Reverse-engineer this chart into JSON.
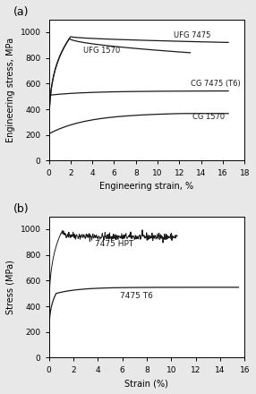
{
  "fig_width": 2.86,
  "fig_height": 4.4,
  "dpi": 100,
  "background_color": "#e8e8e8",
  "subplot_a": {
    "label": "(a)",
    "xlabel": "Engineering strain, %",
    "ylabel": "Engineering stress, MPa",
    "xlim": [
      0,
      18
    ],
    "ylim": [
      0,
      1100
    ],
    "xticks": [
      0,
      2,
      4,
      6,
      8,
      10,
      12,
      14,
      16,
      18
    ],
    "yticks": [
      0,
      200,
      400,
      600,
      800,
      1000
    ]
  },
  "subplot_b": {
    "label": "(b)",
    "xlabel": "Strain (%)",
    "ylabel": "Stress (MPa)",
    "xlim": [
      0,
      16
    ],
    "ylim": [
      0,
      1100
    ],
    "xticks": [
      0,
      2,
      4,
      6,
      8,
      10,
      12,
      14,
      16
    ],
    "yticks": [
      0,
      200,
      400,
      600,
      800,
      1000
    ]
  }
}
